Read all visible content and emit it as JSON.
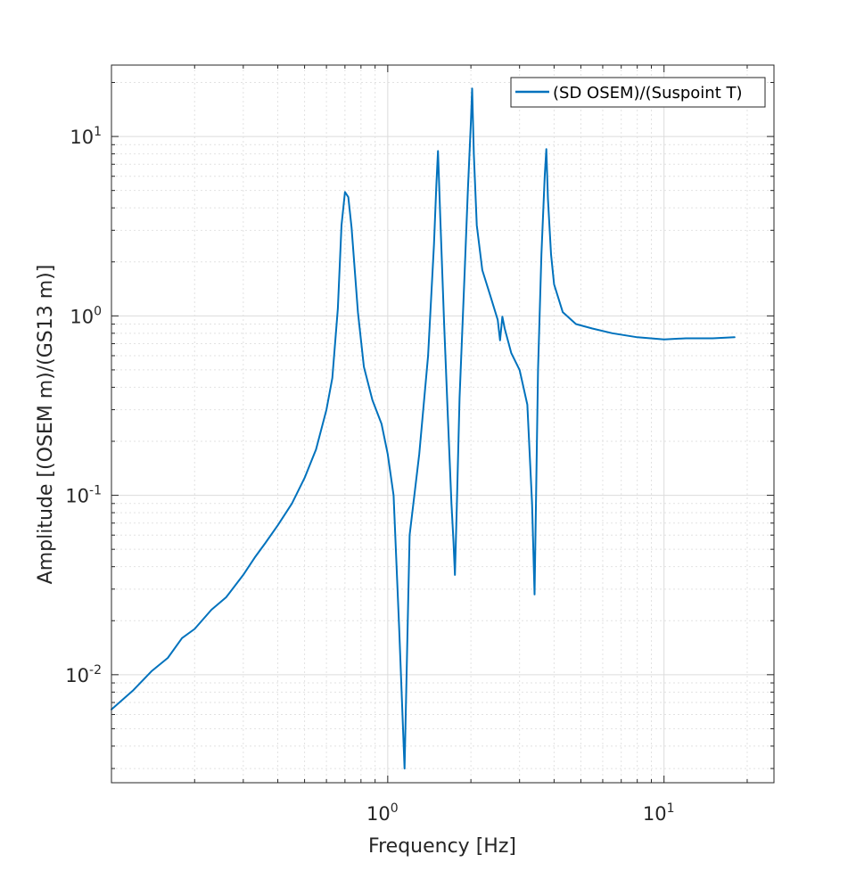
{
  "chart_data": {
    "type": "line",
    "xlabel": "Frequency [Hz]",
    "ylabel": "Amplitude [(OSEM m)/(GS13 m)]",
    "xscale": "log",
    "yscale": "log",
    "xlim": [
      0.1,
      25
    ],
    "ylim": [
      0.0025,
      25
    ],
    "xticks": [
      {
        "base": "10",
        "exp": "0",
        "value": 1
      },
      {
        "base": "10",
        "exp": "1",
        "value": 10
      }
    ],
    "yticks": [
      {
        "base": "10",
        "exp": "-2",
        "value": 0.01
      },
      {
        "base": "10",
        "exp": "-1",
        "value": 0.1
      },
      {
        "base": "10",
        "exp": "0",
        "value": 1
      },
      {
        "base": "10",
        "exp": "1",
        "value": 10
      }
    ],
    "grid": true,
    "minor_grid": true,
    "legend_position": "top-right",
    "series": [
      {
        "name": "(SD OSEM)/(Suspoint T)",
        "color": "#0072BD",
        "x": [
          0.1,
          0.12,
          0.14,
          0.16,
          0.18,
          0.2,
          0.23,
          0.26,
          0.3,
          0.33,
          0.36,
          0.4,
          0.45,
          0.5,
          0.55,
          0.6,
          0.63,
          0.66,
          0.68,
          0.7,
          0.72,
          0.74,
          0.78,
          0.82,
          0.88,
          0.95,
          1.0,
          1.05,
          1.1,
          1.15,
          1.2,
          1.3,
          1.4,
          1.47,
          1.5,
          1.52,
          1.55,
          1.6,
          1.65,
          1.7,
          1.73,
          1.75,
          1.78,
          1.82,
          1.9,
          1.95,
          2.0,
          2.02,
          2.05,
          2.1,
          2.2,
          2.35,
          2.5,
          2.55,
          2.6,
          2.65,
          2.8,
          3.0,
          3.2,
          3.33,
          3.4,
          3.5,
          3.6,
          3.7,
          3.75,
          3.8,
          3.9,
          4.0,
          4.3,
          4.8,
          5.5,
          6.5,
          8.0,
          10.0,
          12.0,
          15.0,
          18.0
        ],
        "y": [
          0.0064,
          0.0082,
          0.0105,
          0.0124,
          0.016,
          0.018,
          0.023,
          0.027,
          0.036,
          0.045,
          0.054,
          0.068,
          0.09,
          0.125,
          0.18,
          0.3,
          0.45,
          1.1,
          3.2,
          4.9,
          4.6,
          3.1,
          1.05,
          0.52,
          0.34,
          0.25,
          0.17,
          0.1,
          0.018,
          0.003,
          0.06,
          0.17,
          0.6,
          2.5,
          5.4,
          8.3,
          3.5,
          0.9,
          0.28,
          0.09,
          0.055,
          0.036,
          0.09,
          0.35,
          1.8,
          5.0,
          12.0,
          18.5,
          8.0,
          3.2,
          1.8,
          1.3,
          0.95,
          0.73,
          0.99,
          0.85,
          0.62,
          0.5,
          0.32,
          0.09,
          0.028,
          0.5,
          2.2,
          6.0,
          8.5,
          4.5,
          2.2,
          1.5,
          1.05,
          0.9,
          0.85,
          0.8,
          0.76,
          0.74,
          0.75,
          0.75,
          0.76
        ]
      }
    ]
  }
}
